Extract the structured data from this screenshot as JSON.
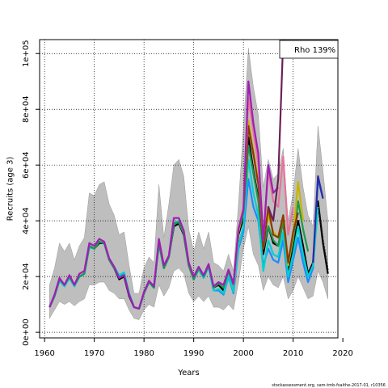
{
  "chart_data": {
    "type": "line",
    "xlabel": "Years",
    "ylabel": "Recruits (age 3)",
    "legend": {
      "text": "Rho 139%",
      "placement": "top-right"
    },
    "footer": "stockassessment.org, sam-tmb-fsaithe-2017-01, r10356",
    "xlim": [
      1959,
      2019
    ],
    "ylim": [
      -2000,
      105000
    ],
    "x_ticks": [
      1960,
      1970,
      1980,
      1990,
      2000,
      2010,
      2020
    ],
    "x_tick_labels": [
      "1960",
      "1970",
      "1980",
      "1990",
      "2000",
      "2010",
      "2020"
    ],
    "y_ticks": [
      0,
      20000,
      40000,
      60000,
      80000,
      100000
    ],
    "y_tick_labels": [
      "0e+00",
      "2e+04",
      "4e+04",
      "6e+04",
      "8e+04",
      "1e+05"
    ],
    "grid": "dotted",
    "ci_band": {
      "color": "#bebebe",
      "x": [
        1961,
        1962,
        1963,
        1964,
        1965,
        1966,
        1967,
        1968,
        1969,
        1970,
        1971,
        1972,
        1973,
        1974,
        1975,
        1976,
        1977,
        1978,
        1979,
        1980,
        1981,
        1982,
        1983,
        1984,
        1985,
        1986,
        1987,
        1988,
        1989,
        1990,
        1991,
        1992,
        1993,
        1994,
        1995,
        1996,
        1997,
        1998,
        1999,
        2000,
        2001,
        2002,
        2003,
        2004,
        2005,
        2006,
        2007,
        2008,
        2009,
        2010,
        2011,
        2012,
        2013,
        2014,
        2015,
        2016,
        2017
      ],
      "upper": [
        17000,
        23000,
        32000,
        29000,
        32000,
        26000,
        31000,
        34000,
        50000,
        49000,
        53000,
        54000,
        46000,
        42000,
        35000,
        36000,
        24000,
        14000,
        14000,
        23000,
        27000,
        25000,
        53000,
        34000,
        46000,
        60000,
        62000,
        56000,
        37000,
        29000,
        36000,
        30000,
        36000,
        25000,
        24000,
        22000,
        28000,
        22000,
        46000,
        73000,
        102000,
        88000,
        78000,
        52000,
        62000,
        55000,
        57000,
        66000,
        40000,
        50000,
        66000,
        52000,
        42000,
        38000,
        74000,
        58000,
        40000
      ],
      "lower": [
        5000,
        8000,
        11000,
        10000,
        11000,
        9500,
        11000,
        12000,
        17000,
        17000,
        18000,
        18000,
        15000,
        14000,
        12000,
        12000,
        8000,
        5000,
        4500,
        8000,
        10000,
        9000,
        17000,
        13000,
        16000,
        22000,
        23000,
        21000,
        14000,
        11000,
        13000,
        11000,
        13000,
        9000,
        9000,
        8000,
        10000,
        8000,
        18000,
        30000,
        38000,
        28000,
        24000,
        15000,
        20000,
        17000,
        16000,
        20000,
        12000,
        15000,
        20000,
        16000,
        12000,
        13000,
        22000,
        18000,
        12000
      ]
    },
    "series": [
      {
        "color": "#000000",
        "x": [
          1961,
          1962,
          1963,
          1964,
          1965,
          1966,
          1967,
          1968,
          1969,
          1970,
          1971,
          1972,
          1973,
          1974,
          1975,
          1976,
          1977,
          1978,
          1979,
          1980,
          1981,
          1982,
          1983,
          1984,
          1985,
          1986,
          1987,
          1988,
          1989,
          1990,
          1991,
          1992,
          1993,
          1994,
          1995,
          1996,
          1997,
          1998,
          1999,
          2000,
          2001,
          2002,
          2003,
          2004,
          2005,
          2006,
          2007,
          2008,
          2009,
          2010,
          2011,
          2012,
          2013,
          2014,
          2015,
          2016,
          2017
        ],
        "y": [
          9000,
          13000,
          19000,
          17000,
          20000,
          17000,
          20000,
          21000,
          31000,
          30000,
          32000,
          32000,
          26000,
          23000,
          19000,
          20000,
          13000,
          9000,
          8500,
          14000,
          18000,
          16000,
          32000,
          23000,
          27000,
          38000,
          39000,
          35000,
          24000,
          19000,
          23000,
          20000,
          24000,
          16000,
          17000,
          15000,
          22000,
          17000,
          35000,
          41000,
          70000,
          58000,
          48000,
          28000,
          38000,
          32000,
          31000,
          40000,
          21000,
          31000,
          40000,
          31000,
          21000,
          25000,
          47000,
          32000,
          21000
        ]
      },
      {
        "color": "#1a8cff",
        "x": [
          1961,
          1962,
          1963,
          1964,
          1965,
          1966,
          1967,
          1968,
          1969,
          1970,
          1971,
          1972,
          1973,
          1974,
          1975,
          1976,
          1977,
          1978,
          1979,
          1980,
          1981,
          1982,
          1983,
          1984,
          1985,
          1986,
          1987,
          1988,
          1989,
          1990,
          1991,
          1992,
          1993,
          1994,
          1995,
          1996,
          1997,
          1998,
          1999,
          2000,
          2001,
          2002,
          2003,
          2004,
          2005,
          2006,
          2007,
          2008,
          2009,
          2010,
          2011,
          2012,
          2013,
          2014,
          2015,
          2016
        ],
        "y": [
          9000,
          13000,
          18500,
          16500,
          19500,
          16500,
          20000,
          21000,
          30500,
          30000,
          32500,
          32000,
          26000,
          23000,
          20000,
          21000,
          14000,
          9000,
          8500,
          14000,
          18000,
          16000,
          32000,
          23000,
          27000,
          39000,
          39500,
          35500,
          24500,
          19000,
          22500,
          19500,
          23500,
          15000,
          15000,
          13500,
          20000,
          14000,
          30000,
          36000,
          55000,
          45000,
          40000,
          24000,
          30000,
          26000,
          25000,
          33000,
          18000,
          26000,
          34000,
          25000,
          18000,
          23000,
          55000,
          48000
        ]
      },
      {
        "color": "#00cfcf",
        "x": [
          1961,
          1962,
          1963,
          1964,
          1965,
          1966,
          1967,
          1968,
          1969,
          1970,
          1971,
          1972,
          1973,
          1974,
          1975,
          1976,
          1977,
          1978,
          1979,
          1980,
          1981,
          1982,
          1983,
          1984,
          1985,
          1986,
          1987,
          1988,
          1989,
          1990,
          1991,
          1992,
          1993,
          1994,
          1995,
          1996,
          1997,
          1998,
          1999,
          2000,
          2001,
          2002,
          2003,
          2004,
          2005,
          2006,
          2007,
          2008,
          2009,
          2010,
          2011,
          2012,
          2013,
          2014,
          2015
        ],
        "y": [
          9000,
          13000,
          18500,
          16500,
          19500,
          16500,
          20000,
          21000,
          30500,
          30000,
          32500,
          32000,
          26500,
          23500,
          20500,
          21500,
          14000,
          9000,
          8500,
          14000,
          18000,
          16000,
          32000,
          23000,
          27000,
          39000,
          40000,
          36000,
          24500,
          19000,
          22500,
          19500,
          23500,
          15000,
          15500,
          14000,
          20500,
          14500,
          31000,
          38000,
          62000,
          50000,
          42000,
          22000,
          33000,
          28000,
          27000,
          36000,
          20000,
          28000,
          38000,
          28000,
          20000,
          24000,
          45000
        ]
      },
      {
        "color": "#1a9850",
        "x": [
          1961,
          1962,
          1963,
          1964,
          1965,
          1966,
          1967,
          1968,
          1969,
          1970,
          1971,
          1972,
          1973,
          1974,
          1975,
          1976,
          1977,
          1978,
          1979,
          1980,
          1981,
          1982,
          1983,
          1984,
          1985,
          1986,
          1987,
          1988,
          1989,
          1990,
          1991,
          1992,
          1993,
          1994,
          1995,
          1996,
          1997,
          1998,
          1999,
          2000,
          2001,
          2002,
          2003,
          2004,
          2005,
          2006,
          2007,
          2008,
          2009,
          2010,
          2011,
          2012,
          2013
        ],
        "y": [
          9000,
          13000,
          19000,
          17000,
          20000,
          17000,
          20000,
          21000,
          31000,
          30000,
          32500,
          32000,
          26000,
          23000,
          19500,
          20500,
          13500,
          9000,
          8500,
          14000,
          18000,
          16000,
          32000,
          23000,
          27000,
          39000,
          39500,
          35500,
          24000,
          19000,
          23000,
          20000,
          24000,
          16000,
          17500,
          16000,
          22000,
          17000,
          36000,
          43000,
          67000,
          57000,
          47000,
          30000,
          38000,
          33000,
          31000,
          40000,
          24000,
          33000,
          47000,
          37000,
          29000
        ]
      },
      {
        "color": "#c8b400",
        "x": [
          1998,
          1999,
          2000,
          2001,
          2002,
          2003,
          2004,
          2005,
          2006,
          2007,
          2008,
          2009,
          2010,
          2011,
          2012
        ],
        "y": [
          17000,
          36000,
          44000,
          76000,
          65000,
          54000,
          33000,
          42000,
          36000,
          34000,
          42000,
          24000,
          35000,
          54000,
          40000
        ]
      },
      {
        "color": "#8b3a00",
        "x": [
          1998,
          1999,
          2000,
          2001,
          2002,
          2003,
          2004,
          2005,
          2006,
          2007,
          2008,
          2009,
          2010,
          2011
        ],
        "y": [
          17000,
          37000,
          44000,
          74000,
          64000,
          53000,
          30000,
          45000,
          35000,
          34000,
          42000,
          25000,
          36000,
          43000
        ]
      },
      {
        "color": "#e8749a",
        "x": [
          1998,
          1999,
          2000,
          2001,
          2002,
          2003,
          2004,
          2005,
          2006,
          2007,
          2008,
          2009,
          2010
        ],
        "y": [
          17000,
          37000,
          45000,
          84000,
          72000,
          60000,
          33000,
          58000,
          47000,
          45000,
          63000,
          35000,
          45000
        ]
      },
      {
        "color": "#a01eb4",
        "x": [
          1961,
          1962,
          1963,
          1964,
          1965,
          1966,
          1967,
          1968,
          1969,
          1970,
          1971,
          1972,
          1973,
          1974,
          1975,
          1976,
          1977,
          1978,
          1979,
          1980,
          1981,
          1982,
          1983,
          1984,
          1985,
          1986,
          1987,
          1988,
          1989,
          1990,
          1991,
          1992,
          1993,
          1994,
          1995,
          1996,
          1997,
          1998,
          1999,
          2000,
          2001,
          2002,
          2003,
          2004,
          2005,
          2006,
          2007
        ],
        "y": [
          9000,
          13500,
          19500,
          17000,
          20500,
          17000,
          21000,
          22000,
          32000,
          31000,
          33500,
          32500,
          26500,
          23500,
          19500,
          20500,
          13500,
          9000,
          8500,
          14500,
          18500,
          16500,
          33500,
          24000,
          27500,
          41000,
          41000,
          36500,
          25000,
          20000,
          23500,
          20500,
          24500,
          16500,
          18000,
          17000,
          22500,
          17500,
          37000,
          44000,
          90000,
          75000,
          64000,
          33000,
          60000,
          50000,
          52000
        ]
      },
      {
        "color": "#6b1f5a",
        "x": [
          2005,
          2006,
          2007,
          2008
        ],
        "y": [
          45000,
          40000,
          55000,
          106000
        ]
      },
      {
        "color": "#2a2aa8",
        "x": [
          2014,
          2015,
          2016
        ],
        "y": [
          25000,
          56000,
          48000
        ]
      },
      {
        "color": "#111111",
        "dashed": true,
        "x": [
          2015,
          2016,
          2017
        ],
        "y": [
          47000,
          33000,
          22000
        ]
      }
    ]
  }
}
